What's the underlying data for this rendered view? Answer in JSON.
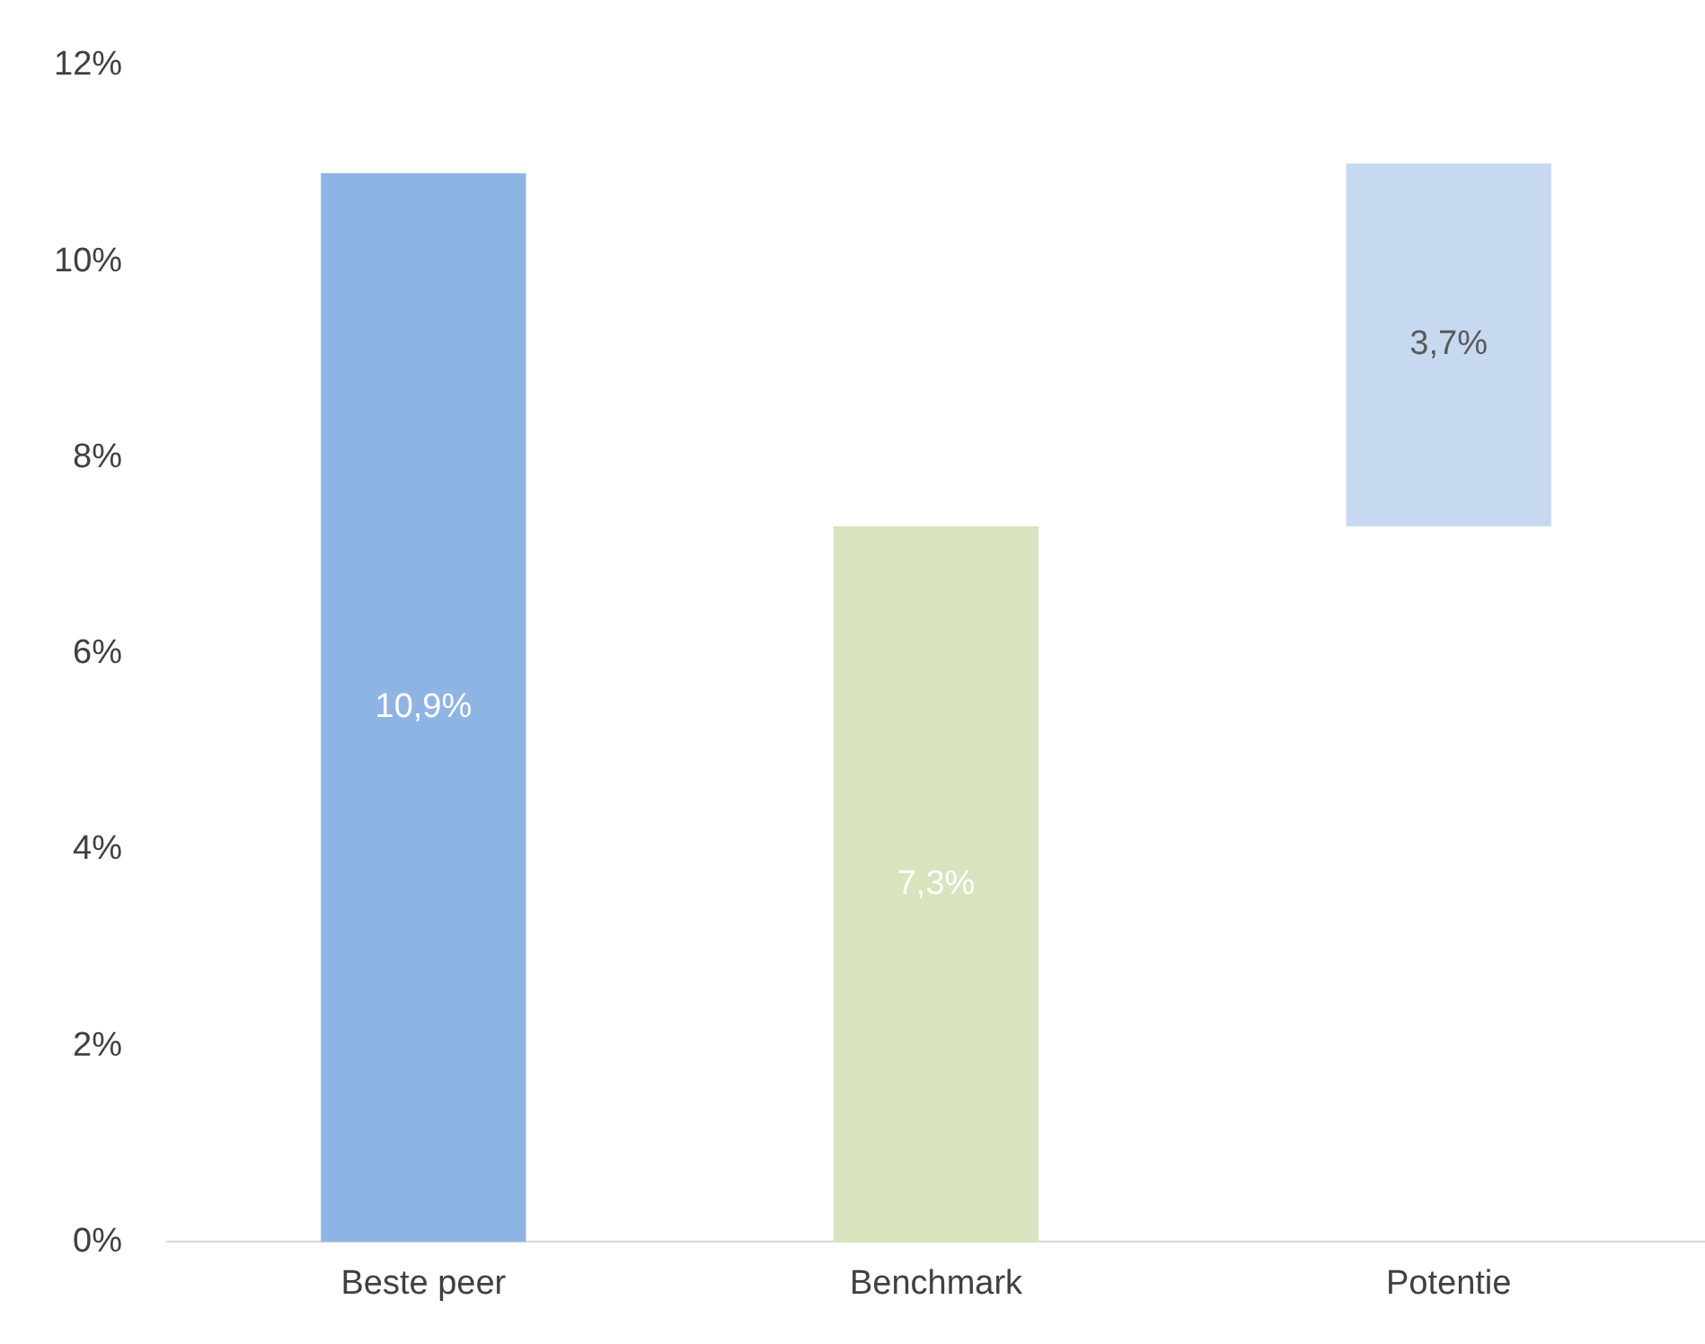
{
  "chart_data": {
    "type": "bar",
    "categories": [
      "Beste peer",
      "Benchmark",
      "Potentie"
    ],
    "values": [
      10.9,
      7.3,
      3.7
    ],
    "base": [
      0,
      0,
      7.3
    ],
    "colors": [
      "#8eb4e3",
      "#d7e4bd",
      "#c6d9f1"
    ],
    "value_labels": [
      "10,9%",
      "7,3%",
      "3,7%"
    ],
    "ylim": [
      0,
      12
    ],
    "yticks": [
      {
        "value": 0,
        "label": "0%"
      },
      {
        "value": 2,
        "label": "2%"
      },
      {
        "value": 4,
        "label": "4%"
      },
      {
        "value": 6,
        "label": "6%"
      },
      {
        "value": 8,
        "label": "8%"
      },
      {
        "value": 10,
        "label": "10%"
      },
      {
        "value": 12,
        "label": "12%"
      }
    ],
    "grid": false,
    "legend": false
  }
}
